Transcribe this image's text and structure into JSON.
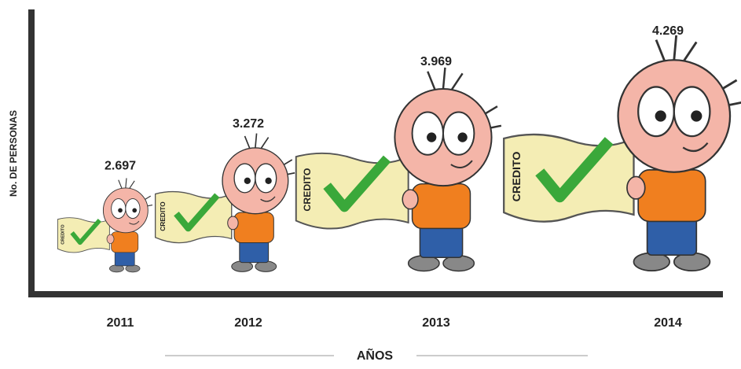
{
  "chart_data": {
    "type": "pictograph",
    "y_label": "No. DE PERSONAS",
    "x_label": "AÑOS",
    "flag_text": "CREDITO",
    "categories": [
      "2011",
      "2012",
      "2013",
      "2014"
    ],
    "values": [
      2697,
      3272,
      3969,
      4269
    ],
    "value_labels": [
      "2.697",
      "3.272",
      "3.969",
      "4.269"
    ]
  }
}
